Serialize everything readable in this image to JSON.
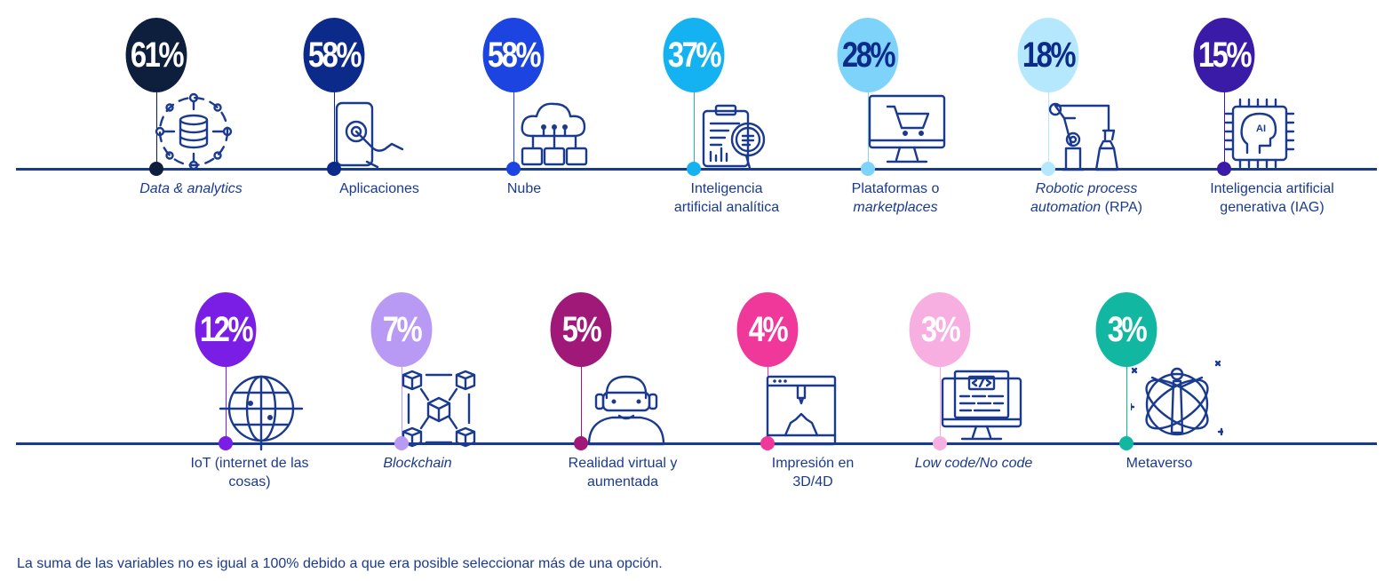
{
  "chart_data": {
    "type": "bar",
    "categories": [
      "Data & analytics",
      "Aplicaciones",
      "Nube",
      "Inteligencia artificial analítica",
      "Plataformas o marketplaces",
      "Robotic process automation (RPA)",
      "Inteligencia artificial generativa (IAG)",
      "IoT (internet de las cosas)",
      "Blockchain",
      "Realidad virtual y aumentada",
      "Impresión en 3D/4D",
      "Low code/No code",
      "Metaverso"
    ],
    "values": [
      61,
      58,
      58,
      37,
      28,
      18,
      15,
      12,
      7,
      5,
      4,
      3,
      3
    ],
    "units": "%"
  },
  "items": [
    {
      "pct": "61%",
      "line1": "Data & analytics",
      "line2": "",
      "italic1": true,
      "italic2": false,
      "color": "#0d1f3c",
      "text": "#ffffff",
      "icon": "database-network-icon"
    },
    {
      "pct": "58%",
      "line1": "Aplicaciones",
      "line2": "",
      "italic1": false,
      "italic2": false,
      "color": "#0c2a8a",
      "text": "#ffffff",
      "icon": "touch-phone-icon"
    },
    {
      "pct": "58%",
      "line1": "Nube",
      "line2": "",
      "italic1": false,
      "italic2": false,
      "color": "#1b44e0",
      "text": "#ffffff",
      "icon": "cloud-network-icon"
    },
    {
      "pct": "37%",
      "line1": "Inteligencia",
      "line2": "artificial analítica",
      "italic1": false,
      "italic2": false,
      "color": "#14b2f0",
      "text": "#ffffff",
      "icon": "analytics-report-icon"
    },
    {
      "pct": "28%",
      "line1": "Plataformas o",
      "line2": "marketplaces",
      "italic1": false,
      "italic2": true,
      "color": "#7ed3fb",
      "text": "#0c2a8a",
      "icon": "monitor-cart-icon"
    },
    {
      "pct": "18%",
      "line1": "Robotic process",
      "line2": "automation",
      "line2b": " (RPA)",
      "italic1": true,
      "italic2": true,
      "color": "#b5e8fd",
      "text": "#0c2a8a",
      "icon": "robot-arm-icon"
    },
    {
      "pct": "15%",
      "line1": "Inteligencia artificial",
      "line2": "generativa (IAG)",
      "italic1": false,
      "italic2": false,
      "color": "#3a1ba8",
      "text": "#ffffff",
      "icon": "ai-chip-icon"
    },
    {
      "pct": "12%",
      "line1": "IoT (internet de las",
      "line2": "cosas)",
      "italic1": false,
      "italic2": false,
      "color": "#7a1ee6",
      "text": "#ffffff",
      "icon": "globe-network-icon"
    },
    {
      "pct": "7%",
      "line1": "Blockchain",
      "line2": "",
      "italic1": true,
      "italic2": false,
      "color": "#b89af5",
      "text": "#ffffff",
      "icon": "blockchain-cubes-icon"
    },
    {
      "pct": "5%",
      "line1": "Realidad virtual y",
      "line2": "aumentada",
      "italic1": false,
      "italic2": false,
      "color": "#a01878",
      "text": "#ffffff",
      "icon": "vr-headset-icon"
    },
    {
      "pct": "4%",
      "line1": "Impresión en",
      "line2": "3D/4D",
      "italic1": false,
      "italic2": false,
      "color": "#f0379a",
      "text": "#ffffff",
      "icon": "3d-printer-icon"
    },
    {
      "pct": "3%",
      "line1": "Low code/No code",
      "line2": "",
      "italic1": true,
      "italic2": false,
      "color": "#f7aee0",
      "text": "#ffffff",
      "icon": "code-monitor-icon"
    },
    {
      "pct": "3%",
      "line1": "Metaverso",
      "line2": "",
      "italic1": false,
      "italic2": false,
      "color": "#12b7a2",
      "text": "#ffffff",
      "icon": "metaverse-avatar-icon"
    }
  ],
  "footnote": "La suma de las variables no es igual a 100% debido a que era posible seleccionar más de una opción."
}
